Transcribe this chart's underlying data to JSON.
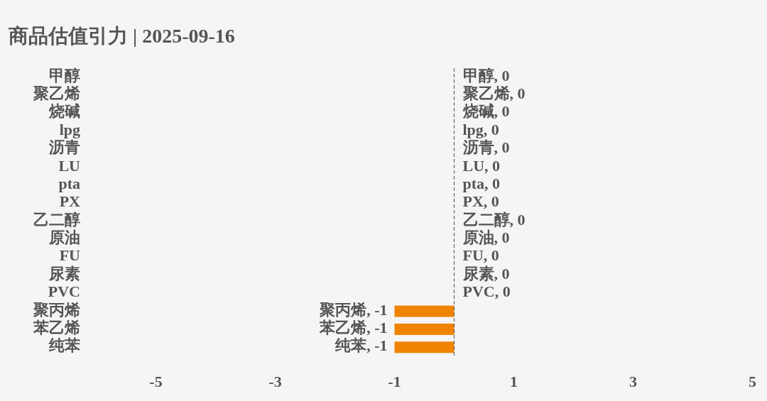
{
  "chart_data": {
    "type": "bar",
    "orientation": "horizontal",
    "title": "商品估值引力 | 2025-09-16",
    "categories": [
      "甲醇",
      "聚乙烯",
      "烧碱",
      "lpg",
      "沥青",
      "LU",
      "pta",
      "PX",
      "乙二醇",
      "原油",
      "FU",
      "尿素",
      "PVC",
      "聚丙烯",
      "苯乙烯",
      "纯苯"
    ],
    "values": [
      0,
      0,
      0,
      0,
      0,
      0,
      0,
      0,
      0,
      0,
      0,
      0,
      0,
      -1,
      -1,
      -1
    ],
    "value_labels": [
      "甲醇, 0",
      "聚乙烯, 0",
      "烧碱, 0",
      "lpg, 0",
      "沥青, 0",
      "LU, 0",
      "pta, 0",
      "PX, 0",
      "乙二醇, 0",
      "原油, 0",
      "FU, 0",
      "尿素, 0",
      "PVC, 0",
      "聚丙烯, -1",
      "苯乙烯, -1",
      "纯苯, -1"
    ],
    "color": "#f08300",
    "xlim": [
      -5,
      5
    ],
    "xticks": [
      -5,
      -3,
      -1,
      1,
      3,
      5
    ],
    "ref_lines": [
      {
        "axis": "x",
        "value": 0,
        "line_style": "dashed",
        "color": "#666666"
      }
    ],
    "grid": false
  }
}
